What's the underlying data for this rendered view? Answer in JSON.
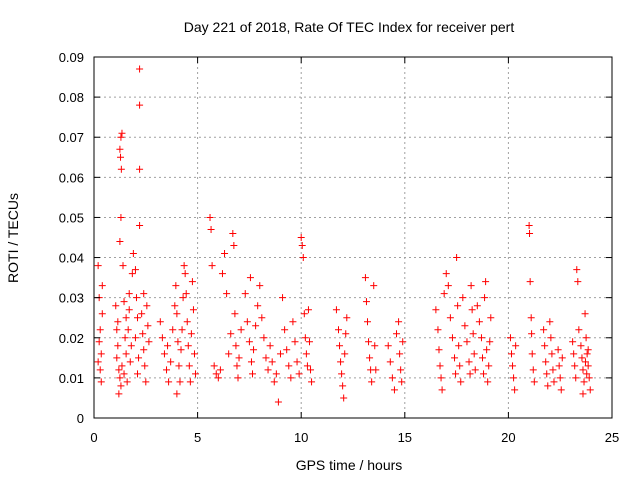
{
  "chart_data": {
    "type": "scatter",
    "title": "Day 221 of 2018, Rate Of TEC Index for receiver pert",
    "xlabel": "GPS time / hours",
    "ylabel": "ROTI / TECUs",
    "xlim": [
      0,
      25
    ],
    "ylim": [
      0,
      0.09
    ],
    "x_ticks": [
      0,
      5,
      10,
      15,
      20,
      25
    ],
    "x_tick_labels": [
      "0",
      "5",
      "10",
      "15",
      "20",
      "25"
    ],
    "y_ticks": [
      0,
      0.01,
      0.02,
      0.03,
      0.04,
      0.05,
      0.06,
      0.07,
      0.08,
      0.09
    ],
    "y_tick_labels": [
      "0",
      "0.01",
      "0.02",
      "0.03",
      "0.04",
      "0.05",
      "0.06",
      "0.07",
      "0.08",
      "0.09"
    ],
    "grid": true,
    "marker": "+",
    "color": "#ff0000",
    "series": [
      {
        "points": [
          [
            0.2,
            0.038
          ],
          [
            0.25,
            0.03
          ],
          [
            0.3,
            0.022
          ],
          [
            0.35,
            0.016
          ],
          [
            0.3,
            0.012
          ],
          [
            0.35,
            0.009
          ],
          [
            0.2,
            0.014
          ],
          [
            0.4,
            0.026
          ],
          [
            0.25,
            0.019
          ],
          [
            0.4,
            0.033
          ],
          [
            1.05,
            0.028
          ],
          [
            1.1,
            0.022
          ],
          [
            1.15,
            0.018
          ],
          [
            1.1,
            0.015
          ],
          [
            1.2,
            0.012
          ],
          [
            1.25,
            0.01
          ],
          [
            1.3,
            0.008
          ],
          [
            1.2,
            0.006
          ],
          [
            1.35,
            0.013
          ],
          [
            1.15,
            0.024
          ],
          [
            1.25,
            0.067
          ],
          [
            1.3,
            0.07
          ],
          [
            1.35,
            0.071
          ],
          [
            1.28,
            0.065
          ],
          [
            1.32,
            0.062
          ],
          [
            1.3,
            0.05
          ],
          [
            1.25,
            0.044
          ],
          [
            1.4,
            0.038
          ],
          [
            1.45,
            0.029
          ],
          [
            1.5,
            0.02
          ],
          [
            1.55,
            0.016
          ],
          [
            1.45,
            0.011
          ],
          [
            1.6,
            0.009
          ],
          [
            1.55,
            0.025
          ],
          [
            1.7,
            0.031
          ],
          [
            1.65,
            0.022
          ],
          [
            1.75,
            0.014
          ],
          [
            1.8,
            0.018
          ],
          [
            1.7,
            0.027
          ],
          [
            1.85,
            0.036
          ],
          [
            1.9,
            0.041
          ],
          [
            2.0,
            0.037
          ],
          [
            2.05,
            0.03
          ],
          [
            2.1,
            0.025
          ],
          [
            2.0,
            0.02
          ],
          [
            2.15,
            0.015
          ],
          [
            2.1,
            0.011
          ],
          [
            2.2,
            0.087
          ],
          [
            2.2,
            0.078
          ],
          [
            2.2,
            0.062
          ],
          [
            2.2,
            0.048
          ],
          [
            2.3,
            0.026
          ],
          [
            2.35,
            0.021
          ],
          [
            2.4,
            0.017
          ],
          [
            2.45,
            0.013
          ],
          [
            2.5,
            0.009
          ],
          [
            2.55,
            0.028
          ],
          [
            2.6,
            0.023
          ],
          [
            2.4,
            0.031
          ],
          [
            2.65,
            0.019
          ],
          [
            3.2,
            0.024
          ],
          [
            3.3,
            0.02
          ],
          [
            3.4,
            0.016
          ],
          [
            3.5,
            0.012
          ],
          [
            3.6,
            0.009
          ],
          [
            3.55,
            0.018
          ],
          [
            3.7,
            0.014
          ],
          [
            3.8,
            0.022
          ],
          [
            3.9,
            0.028
          ],
          [
            3.95,
            0.033
          ],
          [
            4.0,
            0.026
          ],
          [
            4.05,
            0.019
          ],
          [
            4.1,
            0.013
          ],
          [
            4.15,
            0.009
          ],
          [
            4.0,
            0.006
          ],
          [
            4.2,
            0.017
          ],
          [
            4.25,
            0.022
          ],
          [
            4.3,
            0.03
          ],
          [
            4.35,
            0.038
          ],
          [
            4.4,
            0.036
          ],
          [
            4.45,
            0.031
          ],
          [
            4.5,
            0.024
          ],
          [
            4.55,
            0.018
          ],
          [
            4.6,
            0.013
          ],
          [
            4.65,
            0.009
          ],
          [
            4.7,
            0.021
          ],
          [
            4.75,
            0.034
          ],
          [
            4.8,
            0.027
          ],
          [
            4.85,
            0.016
          ],
          [
            4.9,
            0.011
          ],
          [
            5.6,
            0.05
          ],
          [
            5.65,
            0.047
          ],
          [
            5.7,
            0.038
          ],
          [
            5.8,
            0.013
          ],
          [
            5.9,
            0.011
          ],
          [
            6.0,
            0.01
          ],
          [
            6.1,
            0.012
          ],
          [
            6.2,
            0.036
          ],
          [
            6.3,
            0.041
          ],
          [
            6.4,
            0.031
          ],
          [
            6.5,
            0.016
          ],
          [
            6.6,
            0.021
          ],
          [
            6.7,
            0.046
          ],
          [
            6.75,
            0.043
          ],
          [
            6.8,
            0.026
          ],
          [
            6.85,
            0.018
          ],
          [
            6.9,
            0.013
          ],
          [
            6.95,
            0.01
          ],
          [
            7.0,
            0.015
          ],
          [
            7.1,
            0.022
          ],
          [
            7.3,
            0.031
          ],
          [
            7.4,
            0.024
          ],
          [
            7.5,
            0.019
          ],
          [
            7.55,
            0.035
          ],
          [
            7.6,
            0.014
          ],
          [
            7.65,
            0.011
          ],
          [
            7.7,
            0.017
          ],
          [
            7.8,
            0.023
          ],
          [
            7.9,
            0.028
          ],
          [
            8.0,
            0.033
          ],
          [
            8.1,
            0.025
          ],
          [
            8.2,
            0.02
          ],
          [
            8.3,
            0.015
          ],
          [
            8.4,
            0.012
          ],
          [
            8.5,
            0.018
          ],
          [
            8.6,
            0.014
          ],
          [
            8.7,
            0.009
          ],
          [
            8.8,
            0.011
          ],
          [
            8.9,
            0.004
          ],
          [
            9.0,
            0.016
          ],
          [
            9.1,
            0.03
          ],
          [
            9.2,
            0.022
          ],
          [
            9.3,
            0.017
          ],
          [
            9.4,
            0.013
          ],
          [
            9.5,
            0.01
          ],
          [
            9.6,
            0.024
          ],
          [
            9.7,
            0.019
          ],
          [
            9.8,
            0.014
          ],
          [
            9.9,
            0.011
          ],
          [
            10.0,
            0.045
          ],
          [
            10.05,
            0.043
          ],
          [
            10.1,
            0.04
          ],
          [
            10.15,
            0.026
          ],
          [
            10.2,
            0.02
          ],
          [
            10.25,
            0.016
          ],
          [
            10.3,
            0.013
          ],
          [
            10.35,
            0.027
          ],
          [
            10.4,
            0.019
          ],
          [
            10.45,
            0.012
          ],
          [
            10.5,
            0.009
          ],
          [
            11.7,
            0.027
          ],
          [
            11.8,
            0.022
          ],
          [
            11.85,
            0.018
          ],
          [
            11.9,
            0.014
          ],
          [
            11.95,
            0.011
          ],
          [
            12.0,
            0.008
          ],
          [
            12.05,
            0.005
          ],
          [
            12.1,
            0.016
          ],
          [
            12.15,
            0.021
          ],
          [
            12.2,
            0.025
          ],
          [
            13.1,
            0.035
          ],
          [
            13.15,
            0.029
          ],
          [
            13.2,
            0.024
          ],
          [
            13.25,
            0.019
          ],
          [
            13.3,
            0.015
          ],
          [
            13.35,
            0.012
          ],
          [
            13.4,
            0.009
          ],
          [
            13.5,
            0.033
          ],
          [
            13.55,
            0.018
          ],
          [
            13.6,
            0.012
          ],
          [
            14.2,
            0.018
          ],
          [
            14.3,
            0.014
          ],
          [
            14.4,
            0.01
          ],
          [
            14.5,
            0.007
          ],
          [
            14.6,
            0.021
          ],
          [
            14.7,
            0.024
          ],
          [
            14.75,
            0.016
          ],
          [
            14.8,
            0.012
          ],
          [
            14.85,
            0.009
          ],
          [
            14.9,
            0.019
          ],
          [
            16.5,
            0.027
          ],
          [
            16.6,
            0.022
          ],
          [
            16.65,
            0.017
          ],
          [
            16.7,
            0.013
          ],
          [
            16.75,
            0.01
          ],
          [
            16.8,
            0.007
          ],
          [
            16.9,
            0.031
          ],
          [
            17.0,
            0.036
          ],
          [
            17.1,
            0.033
          ],
          [
            17.2,
            0.025
          ],
          [
            17.3,
            0.02
          ],
          [
            17.4,
            0.015
          ],
          [
            17.45,
            0.011
          ],
          [
            17.5,
            0.04
          ],
          [
            17.55,
            0.028
          ],
          [
            17.6,
            0.018
          ],
          [
            17.65,
            0.013
          ],
          [
            17.7,
            0.009
          ],
          [
            17.8,
            0.03
          ],
          [
            17.9,
            0.023
          ],
          [
            18.0,
            0.019
          ],
          [
            18.1,
            0.014
          ],
          [
            18.15,
            0.011
          ],
          [
            18.2,
            0.033
          ],
          [
            18.25,
            0.027
          ],
          [
            18.3,
            0.021
          ],
          [
            18.35,
            0.016
          ],
          [
            18.4,
            0.012
          ],
          [
            18.5,
            0.028
          ],
          [
            18.6,
            0.024
          ],
          [
            18.7,
            0.02
          ],
          [
            18.75,
            0.015
          ],
          [
            18.8,
            0.011
          ],
          [
            18.85,
            0.03
          ],
          [
            18.9,
            0.034
          ],
          [
            18.95,
            0.017
          ],
          [
            19.0,
            0.009
          ],
          [
            19.05,
            0.013
          ],
          [
            19.1,
            0.019
          ],
          [
            19.15,
            0.025
          ],
          [
            20.1,
            0.02
          ],
          [
            20.15,
            0.016
          ],
          [
            20.2,
            0.013
          ],
          [
            20.25,
            0.01
          ],
          [
            20.3,
            0.007
          ],
          [
            20.35,
            0.018
          ],
          [
            21.0,
            0.048
          ],
          [
            21.02,
            0.046
          ],
          [
            21.05,
            0.034
          ],
          [
            21.1,
            0.025
          ],
          [
            21.12,
            0.021
          ],
          [
            21.15,
            0.016
          ],
          [
            21.2,
            0.012
          ],
          [
            21.25,
            0.009
          ],
          [
            21.7,
            0.022
          ],
          [
            21.75,
            0.018
          ],
          [
            21.8,
            0.014
          ],
          [
            21.85,
            0.011
          ],
          [
            21.9,
            0.008
          ],
          [
            22.0,
            0.024
          ],
          [
            22.05,
            0.02
          ],
          [
            22.1,
            0.016
          ],
          [
            22.15,
            0.012
          ],
          [
            22.2,
            0.009
          ],
          [
            22.4,
            0.017
          ],
          [
            22.45,
            0.013
          ],
          [
            22.5,
            0.01
          ],
          [
            22.55,
            0.007
          ],
          [
            22.6,
            0.015
          ],
          [
            23.1,
            0.019
          ],
          [
            23.15,
            0.016
          ],
          [
            23.2,
            0.013
          ],
          [
            23.25,
            0.01
          ],
          [
            23.3,
            0.037
          ],
          [
            23.35,
            0.034
          ],
          [
            23.4,
            0.022
          ],
          [
            23.5,
            0.018
          ],
          [
            23.55,
            0.015
          ],
          [
            23.6,
            0.012
          ],
          [
            23.65,
            0.009
          ],
          [
            23.7,
            0.026
          ],
          [
            23.75,
            0.02
          ],
          [
            23.8,
            0.016
          ],
          [
            23.85,
            0.013
          ],
          [
            23.9,
            0.01
          ],
          [
            23.95,
            0.007
          ],
          [
            23.72,
            0.014
          ],
          [
            23.78,
            0.011
          ],
          [
            23.85,
            0.017
          ],
          [
            23.6,
            0.006
          ]
        ]
      }
    ]
  }
}
